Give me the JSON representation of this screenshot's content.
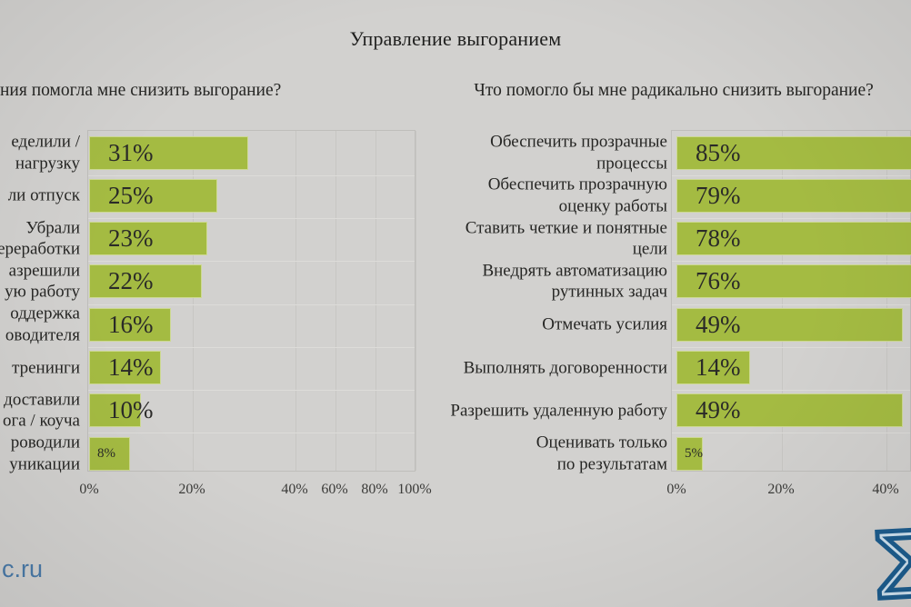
{
  "page": {
    "title": "Управление выгоранием",
    "footer_site": "c.ru",
    "logo_glyph": "Σ"
  },
  "colors": {
    "background": "#d2d1cf",
    "bar_fill": "#a4bb42",
    "text_dark": "#262624",
    "accent_blue": "#4a7aa8",
    "logo_stroke": "#1d5d8e",
    "logo_fill": "#cfe2ef",
    "gridline": "#c7c6c3"
  },
  "chart_data": [
    {
      "type": "bar",
      "orientation": "horizontal",
      "title": "ния помогла мне снизить выгорание?",
      "categories": [
        "еделили /\nнагрузку",
        "ли отпуск",
        "Убрали\nереработки",
        "азрешили\nую работу",
        "оддержка\nоводителя",
        "тренинги",
        "доставили\nога / коуча",
        "роводили\nуникации"
      ],
      "values": [
        31,
        25,
        23,
        22,
        16,
        14,
        10,
        8
      ],
      "value_labels": [
        "31%",
        "25%",
        "23%",
        "22%",
        "16%",
        "14%",
        "10%",
        "8%"
      ],
      "tick_values": [
        0,
        20,
        40,
        60,
        80,
        100
      ],
      "tick_labels": [
        "0%",
        "20%",
        "40%",
        "60%",
        "80%",
        "100%"
      ],
      "xlim": [
        0,
        100
      ],
      "gridlines": true,
      "axis_note": "x-axis spacing compressed beyond 40%",
      "legend": "none"
    },
    {
      "type": "bar",
      "orientation": "horizontal",
      "title": "Что помогло бы мне радикально снизить выгорание?",
      "categories": [
        "Обеспечить прозрачные\nпроцессы",
        "Обеспечить прозрачную\nоценку работы",
        "Ставить четкие и понятные\nцели",
        "Внедрять автоматизацию\nрутинных задач",
        "Отмечать усилия",
        "Выполнять договоренности",
        "Разрешить удаленную работу",
        "Оценивать только\nпо результатам"
      ],
      "values": [
        85,
        79,
        78,
        76,
        49,
        14,
        49,
        5
      ],
      "value_labels": [
        "85%",
        "79%",
        "78%",
        "76%",
        "49%",
        "14%",
        "49%",
        "5%"
      ],
      "tick_values": [
        0,
        20,
        40
      ],
      "tick_labels": [
        "0%",
        "20%",
        "40%"
      ],
      "xlim": [
        0,
        100
      ],
      "gridlines": true,
      "axis_note": "bars above 49% run off the right edge of the slide",
      "legend": "none"
    }
  ]
}
